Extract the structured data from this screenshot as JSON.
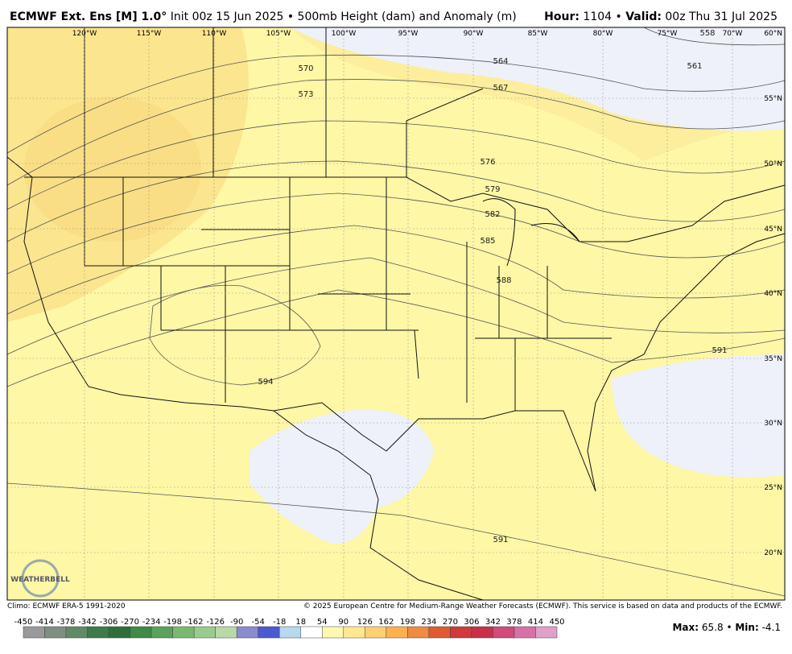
{
  "header": {
    "model": "ECMWF Ext. Ens [M] 1.0°",
    "description": "Init 00z 15 Jun 2025 • 500mb Height (dam) and Anomaly (m)",
    "hour_label": "Hour:",
    "hour": "1104 •",
    "valid_label": "Valid:",
    "valid": "00z Thu 31 Jul 2025"
  },
  "map": {
    "lon_labels": [
      "120°W",
      "115°W",
      "110°W",
      "105°W",
      "100°W",
      "95°W",
      "90°W",
      "85°W",
      "80°W",
      "75°W",
      "70°W"
    ],
    "lat_labels": [
      "60°N",
      "55°N",
      "50°N",
      "45°N",
      "40°N",
      "35°N",
      "30°N",
      "25°N",
      "20°N"
    ],
    "contour_labels": [
      "570",
      "573",
      "564",
      "567",
      "561",
      "558",
      "576",
      "579",
      "582",
      "585",
      "588",
      "591",
      "594",
      "591"
    ],
    "logo": "WEATHERBELL"
  },
  "footer": {
    "climo": "Climo: ECMWF ERA-5 1991-2020",
    "copyright": "© 2025 European Centre for Medium-Range Weather Forecasts (ECMWF). This service is based on data and products of the ECMWF."
  },
  "colorbar": {
    "ticks": [
      -450,
      -414,
      -378,
      -342,
      -306,
      -270,
      -234,
      -198,
      -162,
      -126,
      -90,
      -54,
      -18,
      18,
      54,
      90,
      126,
      162,
      198,
      234,
      270,
      306,
      342,
      378,
      414,
      450
    ],
    "colors": [
      "#9a9a9a",
      "#7f8f7f",
      "#5f8a66",
      "#3f7a4a",
      "#2e6e3c",
      "#3f8a45",
      "#5aa25a",
      "#7ab870",
      "#9acb8c",
      "#b8d8a8",
      "#8a8ad0",
      "#4a5ad0",
      "#b8d8f0",
      "#ffffff",
      "#fff8b0",
      "#ffe890",
      "#ffd070",
      "#ffb050",
      "#f08a40",
      "#e05a30",
      "#d03a3a",
      "#c8304a",
      "#d04a7a",
      "#d870a8",
      "#e0a0c8"
    ]
  },
  "stats": {
    "max_label": "Max:",
    "max": 65.8,
    "separator": "•",
    "min_label": "Min:",
    "min": -4.1
  }
}
